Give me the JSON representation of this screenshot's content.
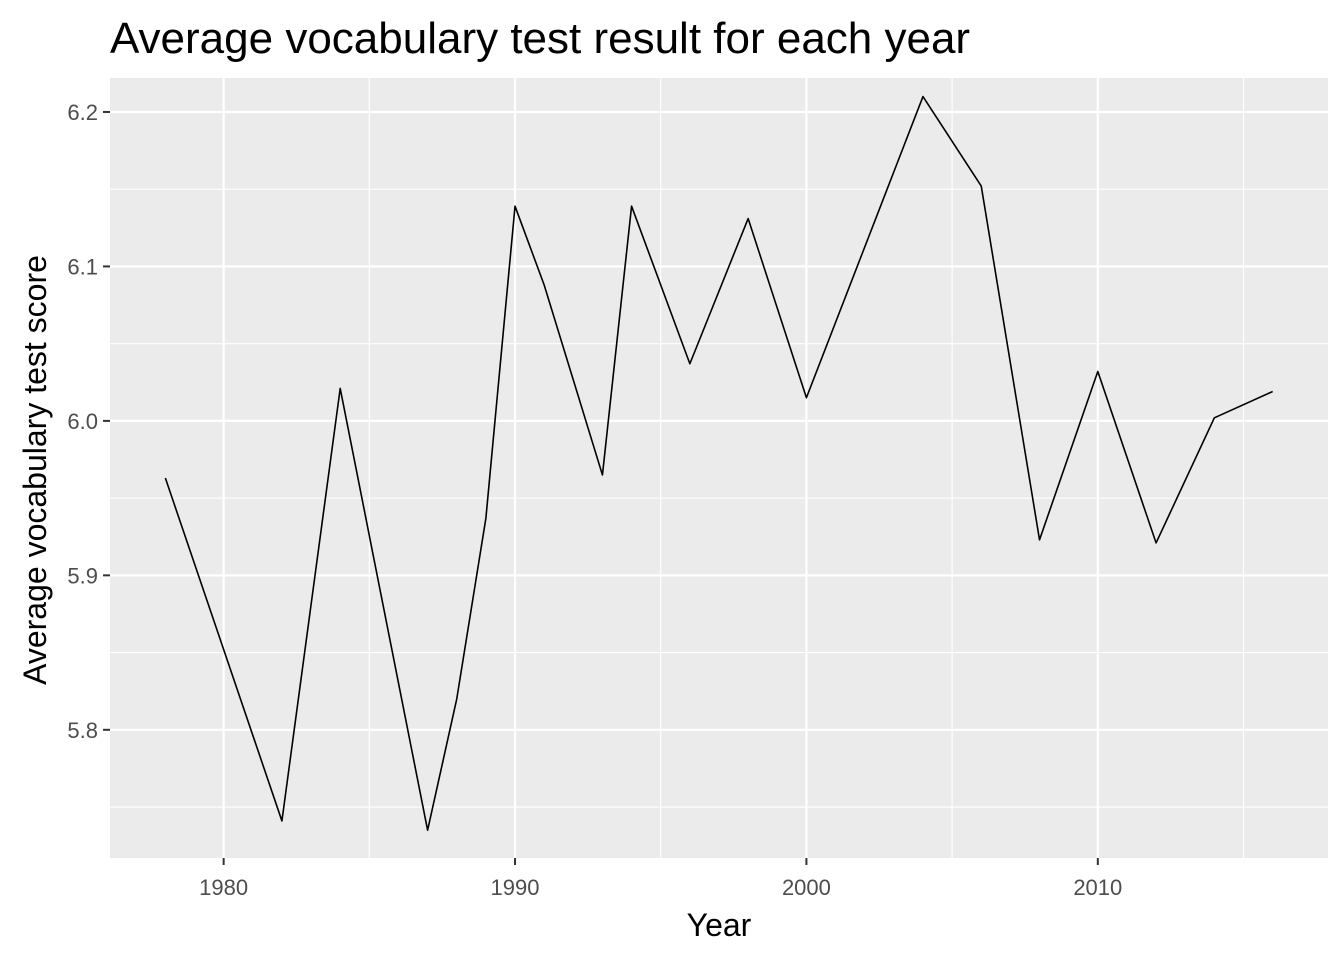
{
  "chart_data": {
    "type": "line",
    "title": "Average vocabulary test result for each year",
    "xlabel": "Year",
    "ylabel": "Average vocabulary test score",
    "xlim": [
      1976.1,
      2017.9
    ],
    "ylim": [
      5.717,
      6.222
    ],
    "x_ticks": [
      1980,
      1990,
      2000,
      2010
    ],
    "x_tick_labels": [
      "1980",
      "1990",
      "2000",
      "2010"
    ],
    "x_minor_ticks": [
      1985,
      1995,
      2005,
      2015
    ],
    "y_ticks": [
      5.8,
      5.9,
      6.0,
      6.1,
      6.2
    ],
    "y_tick_labels": [
      "5.8",
      "5.9",
      "6.0",
      "6.1",
      "6.2"
    ],
    "y_minor_ticks": [
      5.75,
      5.85,
      5.95,
      6.05,
      6.15
    ],
    "grid": true,
    "legend": "none",
    "colors": {
      "panel": "#ebebeb",
      "gridline": "#ffffff",
      "line": "#000000",
      "tick_label": "#4d4d4d",
      "tick": "#333333"
    },
    "series": [
      {
        "x": [
          1978,
          1982,
          1984,
          1987,
          1988,
          1989,
          1990,
          1991,
          1993,
          1994,
          1996,
          1998,
          2000,
          2004,
          2006,
          2008,
          2010,
          2012,
          2014,
          2016
        ],
        "y": [
          5.963,
          5.741,
          6.021,
          5.735,
          5.82,
          5.937,
          6.139,
          6.088,
          5.965,
          6.139,
          6.037,
          6.131,
          6.015,
          6.21,
          6.152,
          5.923,
          6.032,
          5.921,
          6.002,
          6.019
        ]
      }
    ]
  }
}
